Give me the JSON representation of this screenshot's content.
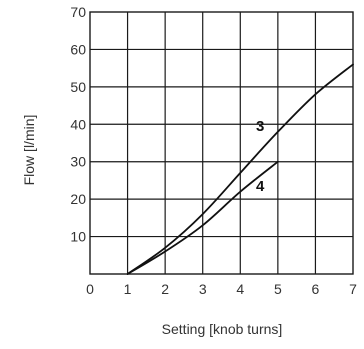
{
  "chart_data": {
    "type": "line",
    "title": "",
    "xlabel": "Setting [knob turns]",
    "ylabel": "Flow [l/min]",
    "xlim": [
      0,
      7
    ],
    "ylim": [
      0,
      70
    ],
    "xticks": [
      "0",
      "1",
      "2",
      "3",
      "4",
      "5",
      "6",
      "7"
    ],
    "yticks": [
      "10",
      "20",
      "30",
      "40",
      "50",
      "60",
      "70"
    ],
    "grid": true,
    "legend": "none",
    "series": [
      {
        "name": "3",
        "x": [
          1,
          2,
          3,
          4,
          5,
          6,
          7
        ],
        "y": [
          0,
          7,
          16,
          27,
          38,
          48,
          56
        ]
      },
      {
        "name": "4",
        "x": [
          1,
          2,
          3,
          4,
          5
        ],
        "y": [
          0,
          6,
          13,
          22,
          30
        ]
      }
    ]
  }
}
